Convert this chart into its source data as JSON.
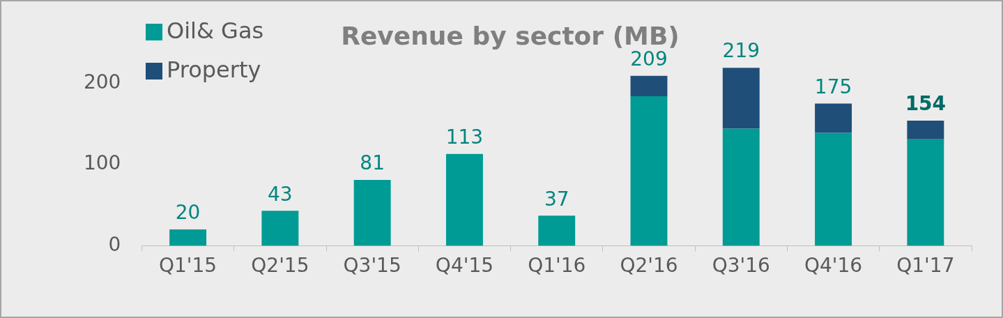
{
  "chart_data": {
    "type": "bar",
    "title": "Revenue by sector (MB)",
    "stacked": true,
    "categories": [
      "Q1'15",
      "Q2'15",
      "Q3'15",
      "Q4'15",
      "Q1'16",
      "Q2'16",
      "Q3'16",
      "Q4'16",
      "Q1'17"
    ],
    "series": [
      {
        "name": "Oil& Gas",
        "color": "#009b94",
        "values": [
          20,
          43,
          81,
          113,
          37,
          184,
          144,
          139,
          131
        ]
      },
      {
        "name": "Property",
        "color": "#1f4e79",
        "values": [
          0,
          0,
          0,
          0,
          0,
          25,
          75,
          36,
          23
        ]
      }
    ],
    "totals": [
      "20",
      "43",
      "81",
      "113",
      "37",
      "209",
      "219",
      "175",
      "154"
    ],
    "ylim": [
      0,
      220
    ],
    "yticks": [
      0,
      100,
      200
    ],
    "grid": false,
    "legend": "top left"
  }
}
